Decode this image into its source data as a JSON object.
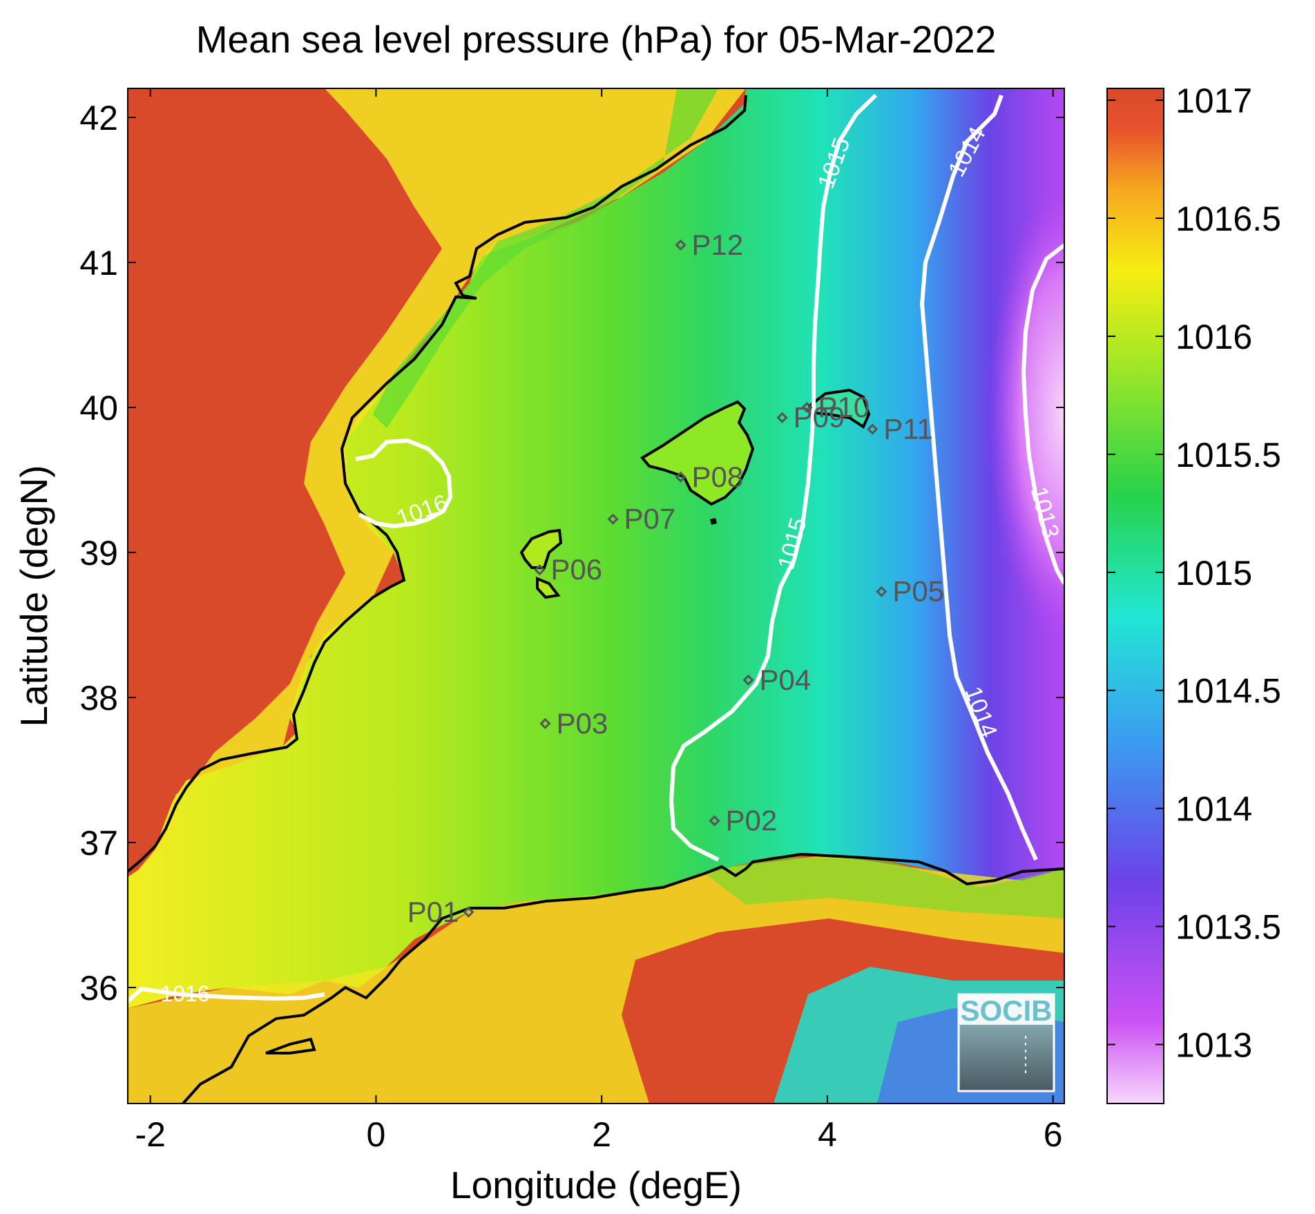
{
  "title": "Mean sea level pressure (hPa) for 05-Mar-2022",
  "axes": {
    "xlabel": "Longitude (degE)",
    "ylabel": "Latitude (degN)",
    "xlim": [
      -2.2,
      6.1
    ],
    "ylim": [
      35.2,
      42.2
    ],
    "xticks": [
      "-2",
      "0",
      "2",
      "4",
      "6"
    ],
    "yticks": [
      "36",
      "37",
      "38",
      "39",
      "40",
      "41",
      "42"
    ]
  },
  "colorbar": {
    "range": [
      1012.75,
      1017.05
    ],
    "ticks": [
      "1013",
      "1013.5",
      "1014",
      "1014.5",
      "1015",
      "1015.5",
      "1016",
      "1016.5",
      "1017"
    ]
  },
  "contour_labels": [
    "1016",
    "1016",
    "1015",
    "1015",
    "1014",
    "1014",
    "1013"
  ],
  "stations": [
    {
      "label": "P01",
      "lon": 0.82,
      "lat": 36.52
    },
    {
      "label": "P02",
      "lon": 3.0,
      "lat": 37.15
    },
    {
      "label": "P03",
      "lon": 1.5,
      "lat": 37.82
    },
    {
      "label": "P04",
      "lon": 3.3,
      "lat": 38.12
    },
    {
      "label": "P05",
      "lon": 4.48,
      "lat": 38.73
    },
    {
      "label": "P06",
      "lon": 1.45,
      "lat": 38.88
    },
    {
      "label": "P07",
      "lon": 2.1,
      "lat": 39.23
    },
    {
      "label": "P08",
      "lon": 2.7,
      "lat": 39.52
    },
    {
      "label": "P09",
      "lon": 3.6,
      "lat": 39.93
    },
    {
      "label": "P10",
      "lon": 3.82,
      "lat": 40.0
    },
    {
      "label": "P11",
      "lon": 4.4,
      "lat": 39.85
    },
    {
      "label": "P12",
      "lon": 2.7,
      "lat": 41.12
    }
  ],
  "logo_text": "SOCIB",
  "colors": {
    "high": "#d94a2a",
    "mid": "#2ed63a",
    "low": "#f0c8f8",
    "contour": "#ffffff",
    "coast": "#000000",
    "station": "#555555"
  }
}
